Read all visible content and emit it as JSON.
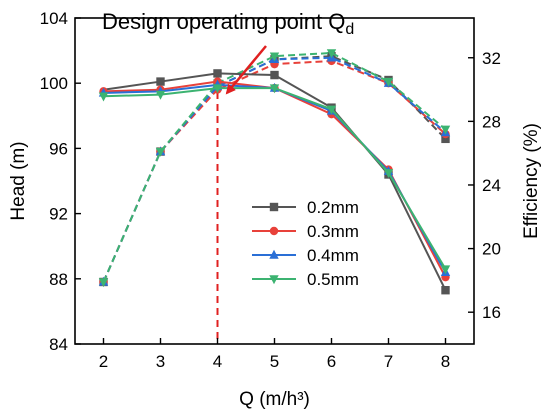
{
  "chart_data": {
    "type": "line",
    "title": "",
    "xlabel": "Q (m/h³)",
    "ylabel": "Head (m)",
    "y2label": "Efficiency (%)",
    "x": [
      2,
      3,
      4,
      5,
      6,
      7,
      8
    ],
    "xlim": [
      1.5,
      8.5
    ],
    "xticks": [
      2,
      3,
      4,
      5,
      6,
      7,
      8
    ],
    "ylim": [
      84,
      104
    ],
    "yticks": [
      84,
      88,
      92,
      96,
      100,
      104
    ],
    "y2lim": [
      14,
      34.5
    ],
    "y2ticks": [
      16,
      20,
      24,
      28,
      32
    ],
    "grid": false,
    "legend_position": "center-right",
    "head_series": [
      {
        "name": "0.2mm",
        "color": "#555555",
        "marker": "square",
        "values": [
          null,
          100.1,
          100.6,
          100.5,
          98.5,
          94.4,
          87.3
        ],
        "start_value": 99.6
      },
      {
        "name": "0.3mm",
        "color": "#e8413a",
        "marker": "circle",
        "values": [
          99.5,
          99.6,
          100.1,
          99.7,
          98.1,
          94.7,
          88.1
        ]
      },
      {
        "name": "0.4mm",
        "color": "#2a6fd6",
        "marker": "triangle-up",
        "values": [
          99.4,
          99.5,
          99.9,
          99.7,
          98.3,
          94.6,
          88.4
        ]
      },
      {
        "name": "0.5mm",
        "color": "#3cb371",
        "marker": "triangle-down",
        "values": [
          99.2,
          99.3,
          99.7,
          99.7,
          98.4,
          94.5,
          88.6
        ]
      }
    ],
    "efficiency_series": [
      {
        "name": "0.2mm",
        "color": "#555555",
        "marker": "square",
        "values": [
          17.9,
          26.1,
          30.2,
          31.9,
          32.1,
          30.6,
          26.9
        ]
      },
      {
        "name": "0.3mm",
        "color": "#e8413a",
        "marker": "circle",
        "values": [
          17.9,
          26.1,
          30.0,
          31.6,
          31.8,
          30.4,
          27.2
        ]
      },
      {
        "name": "0.4mm",
        "color": "#2a6fd6",
        "marker": "triangle-up",
        "values": [
          17.9,
          26.1,
          30.2,
          31.9,
          32.0,
          30.4,
          27.3
        ]
      },
      {
        "name": "0.5mm",
        "color": "#3cb371",
        "marker": "triangle-down",
        "values": [
          17.9,
          26.1,
          30.4,
          32.1,
          32.3,
          30.5,
          27.5
        ]
      }
    ],
    "annotation": {
      "text": "Design operating point Q",
      "subscript": "d",
      "x_value": 4,
      "color": "#e02020"
    }
  }
}
